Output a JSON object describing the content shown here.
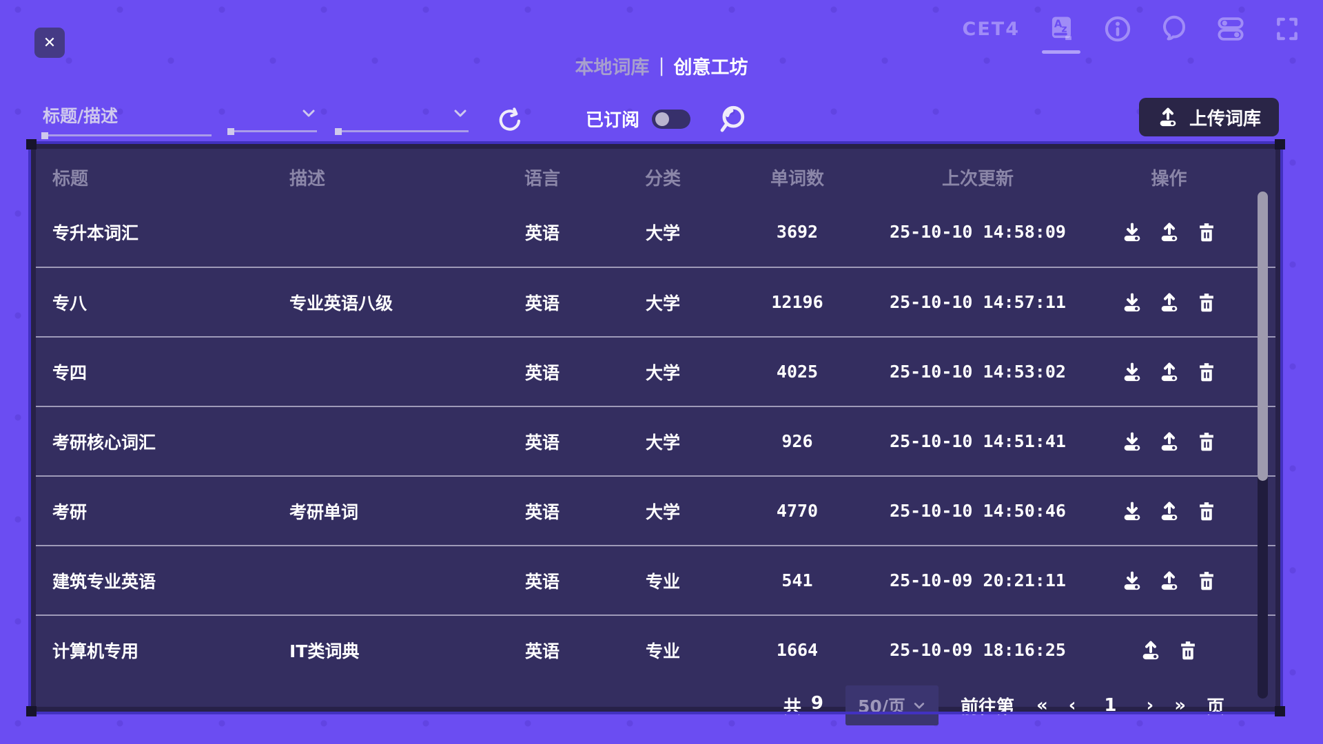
{
  "colors": {
    "background": "#6b4df2",
    "panel": "#342e60",
    "panel_frame": "#272148",
    "accent_border": "#4231c0",
    "dark_button": "#2a2547",
    "muted_text": "#8b86a8"
  },
  "topbar": {
    "close_label": "✕",
    "dictionary_badge": "CET4",
    "icons": [
      "dictionary-icon",
      "info-icon",
      "chat-icon",
      "settings-toggles-icon",
      "fullscreen-icon"
    ]
  },
  "title_tabs": {
    "local_tab": "本地词库",
    "divider": "|",
    "workshop_tab": "创意工坊"
  },
  "filters": {
    "search_placeholder": "标题/描述",
    "subscribed_label": "已订阅",
    "subscribed_on": false,
    "upload_button": "上传词库"
  },
  "table": {
    "headers": [
      "标题",
      "描述",
      "语言",
      "分类",
      "单词数",
      "上次更新",
      "操作"
    ],
    "rows": [
      {
        "title": "专升本词汇",
        "desc": "",
        "lang": "英语",
        "cat": "大学",
        "count": "3692",
        "updated": "25-10-10 14:58:09",
        "actions": [
          "download",
          "upload",
          "delete"
        ]
      },
      {
        "title": "专八",
        "desc": "专业英语八级",
        "lang": "英语",
        "cat": "大学",
        "count": "12196",
        "updated": "25-10-10 14:57:11",
        "actions": [
          "download",
          "upload",
          "delete"
        ]
      },
      {
        "title": "专四",
        "desc": "",
        "lang": "英语",
        "cat": "大学",
        "count": "4025",
        "updated": "25-10-10 14:53:02",
        "actions": [
          "download",
          "upload",
          "delete"
        ]
      },
      {
        "title": "考研核心词汇",
        "desc": "",
        "lang": "英语",
        "cat": "大学",
        "count": "926",
        "updated": "25-10-10 14:51:41",
        "actions": [
          "download",
          "upload",
          "delete"
        ]
      },
      {
        "title": "考研",
        "desc": "考研单词",
        "lang": "英语",
        "cat": "大学",
        "count": "4770",
        "updated": "25-10-10 14:50:46",
        "actions": [
          "download",
          "upload",
          "delete"
        ]
      },
      {
        "title": "建筑专业英语",
        "desc": "",
        "lang": "英语",
        "cat": "专业",
        "count": "541",
        "updated": "25-10-09 20:21:11",
        "actions": [
          "download",
          "upload",
          "delete"
        ]
      },
      {
        "title": "计算机专用",
        "desc": "IT类词典",
        "lang": "英语",
        "cat": "专业",
        "count": "1664",
        "updated": "25-10-09 18:16:25",
        "actions": [
          "upload",
          "delete"
        ]
      }
    ]
  },
  "pagination": {
    "total_prefix": "共",
    "total_count": "9",
    "page_size": "50/页",
    "goto_prefix": "前往第",
    "first": "«",
    "prev": "‹",
    "current_page": "1",
    "next": "›",
    "last": "»",
    "goto_suffix": "页"
  }
}
